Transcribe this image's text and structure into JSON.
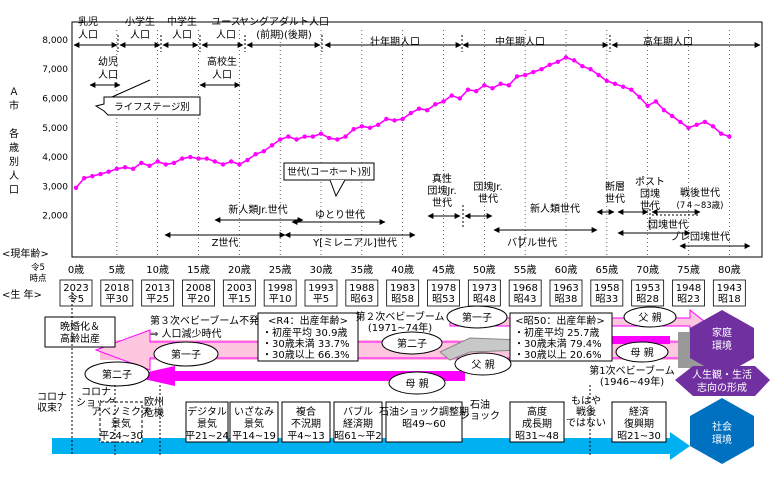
{
  "chart_data": {
    "type": "line",
    "ylabel_vertical": [
      "Ａ",
      "市",
      "",
      "各",
      "歳",
      "別",
      "人",
      "口"
    ],
    "y_ticks": [
      "2,000",
      "3,000",
      "4,000",
      "5,000",
      "6,000",
      "7,000",
      "8,000"
    ],
    "ylim": [
      2000,
      8000
    ],
    "xlim": [
      0,
      84
    ],
    "line_color": "#ff00ff",
    "series": [
      {
        "x": [
          0,
          1,
          2,
          3,
          4,
          5,
          6,
          7,
          8,
          9,
          10,
          11,
          12,
          13,
          14,
          15,
          16,
          17,
          18,
          19,
          20,
          21,
          22,
          23,
          24,
          25,
          26,
          27,
          28,
          29,
          30,
          31,
          32,
          33,
          34,
          35,
          36,
          37,
          38,
          39,
          40,
          41,
          42,
          43,
          44,
          45,
          46,
          47,
          48,
          49,
          50,
          51,
          52,
          53,
          54,
          55,
          56,
          57,
          58,
          59,
          60,
          61,
          62,
          63,
          64,
          65,
          66,
          67,
          68,
          69,
          70,
          71,
          72,
          73,
          74,
          75,
          76,
          77,
          78,
          79,
          80
        ],
        "values": [
          2950,
          3280,
          3350,
          3420,
          3500,
          3600,
          3650,
          3600,
          3800,
          3700,
          3850,
          3750,
          3800,
          3950,
          4000,
          3950,
          3950,
          3850,
          3750,
          3850,
          3750,
          3900,
          4100,
          4200,
          4400,
          4600,
          4700,
          4600,
          4700,
          4700,
          4800,
          4650,
          4600,
          4700,
          4950,
          5050,
          5000,
          5100,
          5300,
          5250,
          5300,
          5500,
          5650,
          5600,
          5800,
          5900,
          6100,
          6000,
          6300,
          6250,
          6450,
          6350,
          6500,
          6450,
          6750,
          6800,
          6900,
          7000,
          7150,
          7250,
          7400,
          7300,
          7100,
          7000,
          6800,
          6600,
          6500,
          6400,
          6300,
          6050,
          5750,
          5900,
          5600,
          5400,
          5200,
          5000,
          5100,
          5200,
          5050,
          4800,
          4700
        ],
        "_comment": ""
      }
    ],
    "series_plot_x": [],
    "title": ""
  },
  "top_labels": [
    {
      "text": "乳児\n人口"
    },
    {
      "text": "小学生\n人口"
    },
    {
      "text": "中学生\n人口"
    },
    {
      "text": "ユース\n人口"
    },
    {
      "text": "ヤングアダルト人口\n(前期)(後期)"
    },
    {
      "text": "壮年期人口"
    },
    {
      "text": "中年期人口"
    },
    {
      "text": "高年期人口"
    },
    {
      "text": "幼児\n人口"
    },
    {
      "text": "高校生\n人口"
    }
  ],
  "callouts": {
    "lifestage": "ライフステージ別",
    "cohort": "世代(コーホート)別"
  },
  "generations": {
    "shinjinrui_jr": "新人類Jr.世代",
    "yutori": "ゆとり世代",
    "z": "Z世代",
    "y": "Y[ミレニアル]世代",
    "dankai_jr_shin": "真性\n団塊Jr.\n世代",
    "dankai_jr": "団塊Jr.\n世代",
    "shinjinrui": "新人類世代",
    "bubble": "バブル世代",
    "dansou": "断層\n世代",
    "post_dankai": "ポスト\n団塊\n世代",
    "sengo": "戦後世代",
    "sengo_range": "(7４~83歳)",
    "dankai": "団塊世代",
    "pre_dankai": "プレ団塊世代"
  },
  "age_row": {
    "header1": "<現年齢>",
    "header2": "令5\n時点",
    "header3": "<生 年>",
    "ages": [
      "0歳",
      "5歳",
      "10歳",
      "15歳",
      "20歳",
      "25歳",
      "30歳",
      "35歳",
      "40歳",
      "45歳",
      "50歳",
      "55歳",
      "60歳",
      "65歳",
      "70歳",
      "75歳",
      "80歳"
    ],
    "years": [
      "2023\n令5",
      "2018\n平30",
      "2013\n平25",
      "2008\n平20",
      "2003\n平15",
      "1998\n平10",
      "1993\n平5",
      "1988\n昭63",
      "1983\n昭58",
      "1978\n昭53",
      "1973\n昭48",
      "1968\n昭43",
      "1963\n昭38",
      "1958\n昭33",
      "1953\n昭28",
      "1948\n昭23",
      "1943\n昭18"
    ]
  },
  "lower": {
    "late_marriage": "晩婚化＆\n高齢出産",
    "third_boom": "第３次ベビーブーム不発\n⇒ 人口減少時代",
    "r4_title": "<R4：出産年齢>",
    "r4_lines": [
      "・初産平均 30.9歳",
      "・30歳未満 33.7%",
      "・30歳以上 66.3%"
    ],
    "second_boom": "第２次ベビーブーム\n(1971~74年)",
    "s50_title": "<昭50：出産年齢>",
    "s50_lines": [
      "・初産平均 25.7歳",
      "・30歳未満 79.4%",
      "・30歳以上 20.6%"
    ],
    "first_child": "第一子",
    "second_child": "第二子",
    "mother": "母 親",
    "father": "父 親",
    "first_boom": "第1次ベビーブーム\n(1946~49年)",
    "katei": "家庭\n環境",
    "jinseikan": "人生観・生活\n志向の形成",
    "shakai": "社会\n環境",
    "corona": "コロナ\n収束？",
    "corona_shock": "コロナ\nショック",
    "abenomics": "アベノミクス\n景気\n平24~30",
    "euro": "欧州\n危機",
    "digital": "デジタル\n景気\n平21~24",
    "izanami": "いざなみ\n景気\n平14~19",
    "fukugou": "複合\n不況期\n平4~13",
    "bubble_econ": "バブル\n経済期\n昭61~平2",
    "oilshock_adj": "石油ショック調整期\n昭49~60",
    "oilshock": "石油\nショック",
    "high_growth": "高度\n成長期\n昭31~48",
    "no_postwar": "もはや\n戦後\nではない",
    "recovery": "経済\n復興期\n昭21~30"
  }
}
